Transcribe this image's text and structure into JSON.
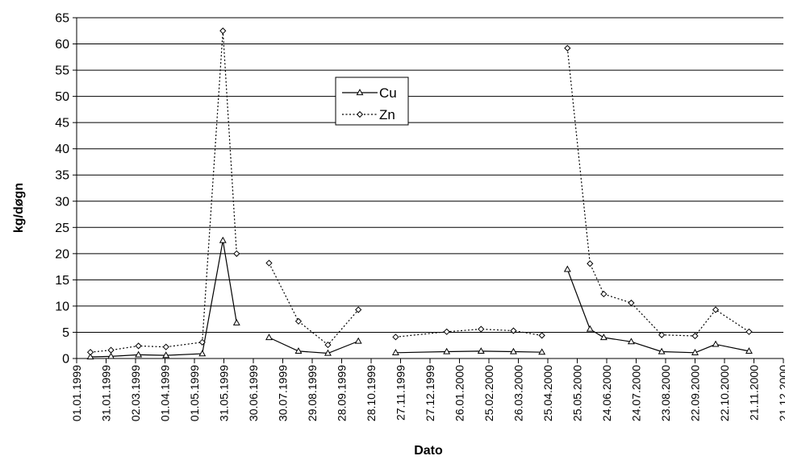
{
  "chart_data": {
    "type": "line",
    "title": "",
    "xlabel": "Dato",
    "ylabel": "kg/døgn",
    "ylim": [
      0,
      65
    ],
    "yticks": [
      "0",
      "5",
      "10",
      "15",
      "20",
      "25",
      "30",
      "35",
      "40",
      "45",
      "50",
      "55",
      "60",
      "65"
    ],
    "xlim": [
      "1999-01-01",
      "2000-12-21"
    ],
    "xticks": [
      "01.01.1999",
      "31.01.1999",
      "02.03.1999",
      "01.04.1999",
      "01.05.1999",
      "31.05.1999",
      "30.06.1999",
      "30.07.1999",
      "29.08.1999",
      "28.09.1999",
      "28.10.1999",
      "27.11.1999",
      "27.12.1999",
      "26.01.2000",
      "25.02.2000",
      "26.03.2000",
      "25.04.2000",
      "25.05.2000",
      "24.06.2000",
      "24.07.2000",
      "23.08.2000",
      "22.09.2000",
      "22.10.2000",
      "21.11.2000",
      "21.12.2000"
    ],
    "grid": "horizontal",
    "legend": "upper-center",
    "series": [
      {
        "name": "Cu",
        "style": "solid",
        "marker": "triangle",
        "color": "#000000",
        "segments": [
          {
            "x": [
              "1999-01-15",
              "1999-02-05",
              "1999-03-05",
              "1999-04-02",
              "1999-05-09",
              "1999-05-30",
              "1999-06-13"
            ],
            "y": [
              0.3,
              0.4,
              0.7,
              0.6,
              0.9,
              22.5,
              6.8
            ]
          },
          {
            "x": [
              "1999-07-16",
              "1999-08-15",
              "1999-09-14",
              "1999-10-15"
            ],
            "y": [
              4.0,
              1.4,
              1.0,
              3.3
            ]
          },
          {
            "x": [
              "1999-11-22",
              "2000-01-13",
              "2000-02-17",
              "2000-03-21",
              "2000-04-19"
            ],
            "y": [
              1.1,
              1.3,
              1.4,
              1.3,
              1.2
            ]
          },
          {
            "x": [
              "2000-05-15",
              "2000-06-07",
              "2000-06-21",
              "2000-07-19",
              "2000-08-19",
              "2000-09-22",
              "2000-10-13",
              "2000-11-16"
            ],
            "y": [
              17.0,
              5.6,
              4.0,
              3.2,
              1.3,
              1.1,
              2.7,
              1.4
            ]
          }
        ]
      },
      {
        "name": "Zn",
        "style": "dotted",
        "marker": "diamond",
        "color": "#000000",
        "segments": [
          {
            "x": [
              "1999-01-15",
              "1999-02-05",
              "1999-03-05",
              "1999-04-02",
              "1999-05-09",
              "1999-05-30",
              "1999-06-13"
            ],
            "y": [
              1.2,
              1.6,
              2.4,
              2.2,
              3.1,
              62.5,
              20.0
            ]
          },
          {
            "x": [
              "1999-07-16",
              "1999-08-15",
              "1999-09-14",
              "1999-10-15"
            ],
            "y": [
              18.2,
              7.1,
              2.6,
              9.3
            ]
          },
          {
            "x": [
              "1999-11-22",
              "2000-01-13",
              "2000-02-17",
              "2000-03-21",
              "2000-04-19"
            ],
            "y": [
              4.1,
              5.1,
              5.6,
              5.3,
              4.4
            ]
          },
          {
            "x": [
              "2000-05-15",
              "2000-06-07",
              "2000-06-21",
              "2000-07-19",
              "2000-08-19",
              "2000-09-22",
              "2000-10-13",
              "2000-11-16"
            ],
            "y": [
              59.2,
              18.1,
              12.3,
              10.6,
              4.5,
              4.3,
              9.3,
              5.1
            ]
          }
        ]
      }
    ]
  }
}
